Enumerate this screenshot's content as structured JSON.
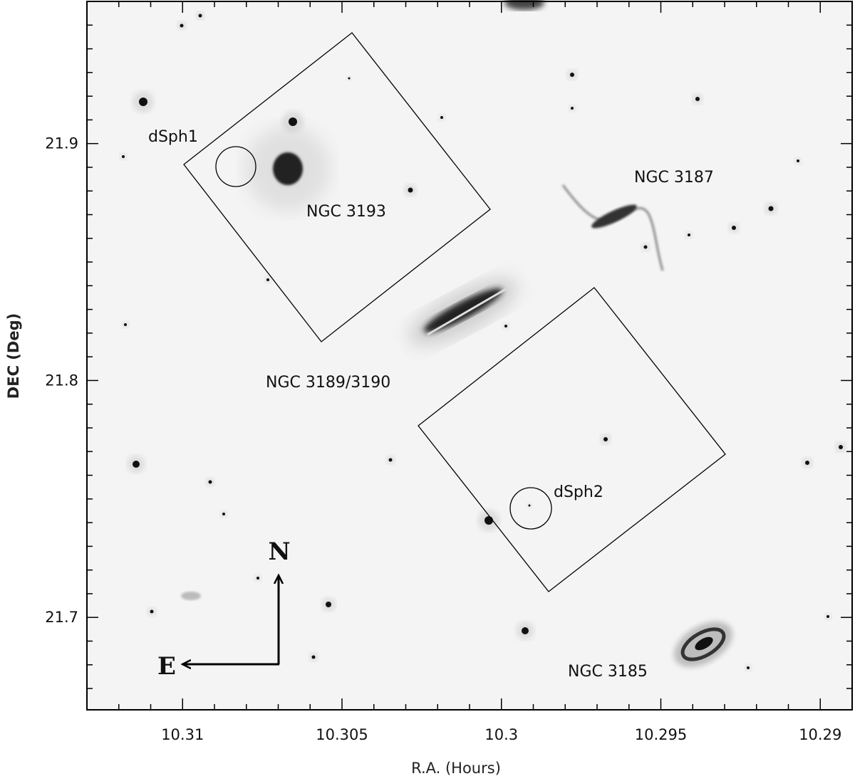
{
  "chart_data": {
    "type": "sky-image",
    "x_label": "R.A. (Hours)",
    "y_label": "DEC (Deg)",
    "xlim": [
      10.313,
      10.289
    ],
    "ylim": [
      21.661,
      21.96
    ],
    "xticks": [
      10.31,
      10.305,
      10.3,
      10.295,
      10.29
    ],
    "yticks": [
      21.7,
      21.8,
      21.9
    ],
    "xminorticks": [
      10.312,
      10.311,
      10.309,
      10.308,
      10.307,
      10.306,
      10.304,
      10.303,
      10.302,
      10.301,
      10.299,
      10.298,
      10.297,
      10.296,
      10.294,
      10.293,
      10.292,
      10.291
    ],
    "yminorticks": [
      21.67,
      21.68,
      21.69,
      21.71,
      21.72,
      21.73,
      21.74,
      21.75,
      21.76,
      21.77,
      21.78,
      21.79,
      21.81,
      21.82,
      21.83,
      21.84,
      21.85,
      21.86,
      21.87,
      21.88,
      21.89,
      21.91,
      21.92,
      21.93,
      21.94,
      21.95
    ],
    "annotations": [
      "dSph1",
      "NGC 3193",
      "NGC 3187",
      "NGC 3189/3190",
      "dSph2",
      "NGC 3185"
    ],
    "compass": {
      "north": "N",
      "east": "E"
    }
  }
}
